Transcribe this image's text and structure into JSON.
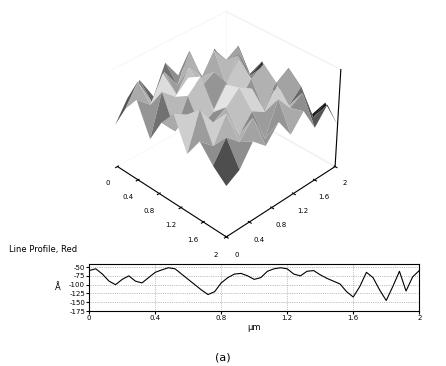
{
  "caption": "(a)",
  "chart_data": [
    {
      "type": "surface",
      "x": [
        0,
        0.222,
        0.444,
        0.667,
        0.889,
        1.111,
        1.333,
        1.556,
        1.778,
        2.0
      ],
      "y": [
        0,
        0.222,
        0.444,
        0.667,
        0.889,
        1.111,
        1.333,
        1.556,
        1.778,
        2.0
      ],
      "values": [
        [
          -120,
          -90,
          -70,
          -110,
          -80,
          -60,
          -100,
          -75,
          -95,
          -110
        ],
        [
          -95,
          -65,
          -85,
          -60,
          -100,
          -70,
          -55,
          -90,
          -70,
          -100
        ],
        [
          -80,
          -100,
          -55,
          -75,
          -65,
          -95,
          -80,
          -60,
          -85,
          -75
        ],
        [
          -110,
          -70,
          -90,
          -60,
          -50,
          -85,
          -70,
          -95,
          -65,
          -90
        ],
        [
          -75,
          -95,
          -65,
          -80,
          -100,
          -60,
          -55,
          -75,
          -100,
          -70
        ],
        [
          -100,
          -60,
          -85,
          -70,
          -75,
          -90,
          -65,
          -85,
          -60,
          -95
        ],
        [
          -85,
          -105,
          -60,
          -95,
          -55,
          -70,
          -100,
          -60,
          -80,
          -75
        ],
        [
          -120,
          -75,
          -80,
          -65,
          -90,
          -60,
          -75,
          -95,
          -70,
          -105
        ],
        [
          -90,
          -110,
          -70,
          -100,
          -80,
          -95,
          -65,
          -80,
          -110,
          -85
        ],
        [
          -130,
          -100,
          -115,
          -90,
          -120,
          -105,
          -95,
          -125,
          -100,
          -120
        ]
      ],
      "xlim": [
        0,
        2
      ],
      "ylim": [
        0,
        2
      ],
      "zlim": [
        -175,
        -50
      ],
      "xticks": [
        0,
        0.4,
        0.8,
        1.2,
        1.6,
        2
      ],
      "yticks": [
        0,
        0.4,
        0.8,
        1.2,
        1.6,
        2
      ],
      "color": "gray"
    },
    {
      "type": "line",
      "title": "Line Profile, Red",
      "xlabel": "µm",
      "ylabel": "Å",
      "x": [
        0,
        0.04,
        0.08,
        0.12,
        0.16,
        0.2,
        0.24,
        0.28,
        0.32,
        0.36,
        0.4,
        0.44,
        0.48,
        0.52,
        0.56,
        0.6,
        0.64,
        0.68,
        0.72,
        0.76,
        0.8,
        0.84,
        0.88,
        0.92,
        0.96,
        1.0,
        1.04,
        1.08,
        1.12,
        1.16,
        1.2,
        1.24,
        1.28,
        1.32,
        1.36,
        1.4,
        1.44,
        1.48,
        1.52,
        1.56,
        1.6,
        1.64,
        1.68,
        1.72,
        1.76,
        1.8,
        1.84,
        1.88,
        1.92,
        1.96,
        2.0
      ],
      "values": [
        -60,
        -55,
        -70,
        -90,
        -100,
        -85,
        -75,
        -90,
        -95,
        -80,
        -65,
        -58,
        -52,
        -55,
        -70,
        -85,
        -100,
        -115,
        -128,
        -120,
        -95,
        -80,
        -70,
        -68,
        -75,
        -85,
        -80,
        -62,
        -55,
        -52,
        -55,
        -70,
        -75,
        -62,
        -60,
        -72,
        -82,
        -90,
        -98,
        -120,
        -135,
        -105,
        -65,
        -80,
        -115,
        -145,
        -105,
        -62,
        -118,
        -78,
        -60
      ],
      "color": "#000000",
      "xlim": [
        0,
        2
      ],
      "ylim": [
        -175,
        -40
      ],
      "xticks": [
        0,
        0.4,
        0.8,
        1.2,
        1.6,
        2
      ],
      "yticks": [
        -50,
        -75,
        -100,
        -125,
        -150,
        -175
      ],
      "grid": true
    }
  ]
}
